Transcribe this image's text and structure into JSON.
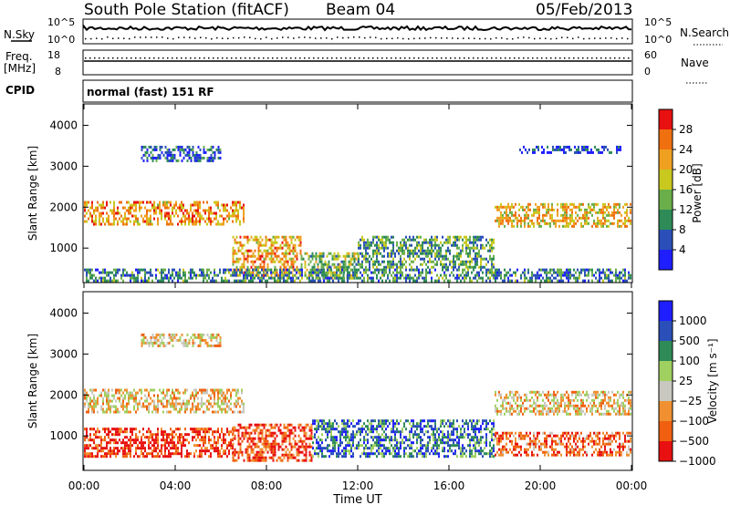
{
  "header": {
    "station": "South Pole Station (fitACF)",
    "beam": "Beam 04",
    "date": "05/Feb/2013"
  },
  "top_panels": {
    "nsky_label": "N.Sky",
    "nsky_ticks": [
      "10^5",
      "10^0"
    ],
    "nsearch_label": "N.Search",
    "nsearch_ticks": [
      "10^5",
      "10^0"
    ],
    "freq_label_line1": "Freq.",
    "freq_label_line2": "[MHz]",
    "freq_ticks": [
      "18",
      "8"
    ],
    "nave_label": "Nave",
    "nave_ticks": [
      "60",
      "0"
    ],
    "cpid_label": "CPID",
    "cpid_value": "normal (fast) 151 RF"
  },
  "chart_data": [
    {
      "type": "heatmap",
      "name": "power",
      "ylabel": "Slant Range [km]",
      "xlabel": "",
      "yticks": [
        "4000",
        "3000",
        "2000",
        "1000"
      ],
      "ytick_values": [
        4000,
        3000,
        2000,
        1000
      ],
      "ylim": [
        180,
        4500
      ],
      "xlim": [
        0,
        24
      ],
      "colorbar_title": "Power [dB]",
      "colorbar_ticks": [
        "28",
        "24",
        "20",
        "16",
        "12",
        "8",
        "4"
      ],
      "colorbar_range": [
        0,
        31
      ],
      "colors": [
        "#1e1eff",
        "#2a4fb8",
        "#2e8b57",
        "#6aaf4a",
        "#c8c81e",
        "#f0a020",
        "#f07010",
        "#e81010"
      ],
      "bands": [
        {
          "t0": 0.0,
          "t1": 7.0,
          "r0": 1550,
          "r1": 2150,
          "level": 0.72
        },
        {
          "t0": 6.5,
          "t1": 9.5,
          "r0": 300,
          "r1": 1300,
          "level": 0.7
        },
        {
          "t0": 9.5,
          "t1": 12.0,
          "r0": 250,
          "r1": 900,
          "level": 0.45
        },
        {
          "t0": 12.0,
          "t1": 18.0,
          "r0": 500,
          "r1": 1300,
          "level": 0.35
        },
        {
          "t0": 18.0,
          "t1": 24.0,
          "r0": 1550,
          "r1": 2100,
          "level": 0.65
        },
        {
          "t0": 2.5,
          "t1": 6.0,
          "r0": 3100,
          "r1": 3500,
          "level": 0.2
        },
        {
          "t0": 19.0,
          "t1": 23.5,
          "r0": 3300,
          "r1": 3500,
          "level": 0.15
        },
        {
          "t0": 0.0,
          "t1": 24.0,
          "r0": 200,
          "r1": 500,
          "level": 0.3
        }
      ]
    },
    {
      "type": "heatmap",
      "name": "velocity",
      "ylabel": "Slant Range [km]",
      "xlabel": "Time UT",
      "yticks": [
        "4000",
        "3000",
        "2000",
        "1000"
      ],
      "ytick_values": [
        4000,
        3000,
        2000,
        1000
      ],
      "ylim": [
        180,
        4500
      ],
      "xlim": [
        0,
        24
      ],
      "xticks": [
        "00:00",
        "04:00",
        "08:00",
        "12:00",
        "16:00",
        "20:00",
        "00:00"
      ],
      "xtick_values": [
        0,
        4,
        8,
        12,
        16,
        20,
        24
      ],
      "colorbar_title": "Velocity [m s⁻¹]",
      "colorbar_ticks": [
        "1000",
        "500",
        "100",
        "25",
        "−25",
        "−100",
        "−500",
        "−1000"
      ],
      "colors": [
        "#e81010",
        "#f06010",
        "#f09030",
        "#c8c8c0",
        "#a0d060",
        "#2e8b57",
        "#2a4fb8",
        "#1e1eff"
      ],
      "bands": [
        {
          "t0": 0.0,
          "t1": 7.0,
          "r0": 1550,
          "r1": 2150,
          "level": 0.4
        },
        {
          "t0": 18.0,
          "t1": 24.0,
          "r0": 1550,
          "r1": 2100,
          "level": 0.4
        },
        {
          "t0": 0.0,
          "t1": 6.5,
          "r0": 500,
          "r1": 1200,
          "level": 0.1
        },
        {
          "t0": 6.5,
          "t1": 10.0,
          "r0": 400,
          "r1": 1300,
          "level": 0.15
        },
        {
          "t0": 10.0,
          "t1": 18.0,
          "r0": 500,
          "r1": 1400,
          "level": 0.75
        },
        {
          "t0": 18.0,
          "t1": 24.0,
          "r0": 500,
          "r1": 1100,
          "level": 0.2
        },
        {
          "t0": 2.5,
          "t1": 6.0,
          "r0": 3200,
          "r1": 3500,
          "level": 0.4
        }
      ]
    }
  ]
}
